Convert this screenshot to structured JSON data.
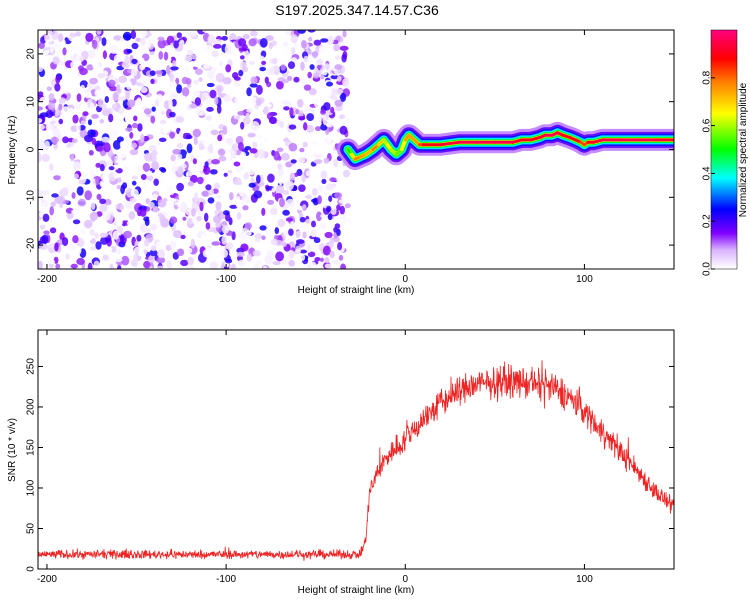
{
  "title": "S197.2025.347.14.57.C36",
  "chart_data": [
    {
      "type": "heatmap",
      "xlabel": "Height of straight line (km)",
      "ylabel": "Frequency (Hz)",
      "xlim": [
        -205,
        150
      ],
      "ylim": [
        -25,
        25
      ],
      "xticks": [
        -200,
        -100,
        0,
        100
      ],
      "yticks": [
        -20,
        -10,
        0,
        10,
        20
      ],
      "colorbar": {
        "label": "Normalized spectral amplitude",
        "range": [
          0,
          1
        ],
        "ticks": [
          "0.0",
          "0.2",
          "0.4",
          "0.6",
          "0.8"
        ],
        "colors": [
          "#ffffff",
          "#cc99ff",
          "#8000ff",
          "#0000ff",
          "#00ffff",
          "#00ff00",
          "#ffff00",
          "#ff8000",
          "#ff0000",
          "#ff0080"
        ]
      },
      "noise_region": {
        "x_from": -205,
        "x_to": -32,
        "max_amplitude": 0.25
      },
      "signal_trace": {
        "x": [
          -32,
          -30,
          -28,
          -25,
          -22,
          -18,
          -15,
          -12,
          -10,
          -8,
          -5,
          -2,
          0,
          2,
          5,
          8,
          10,
          15,
          20,
          30,
          40,
          50,
          60,
          65,
          70,
          75,
          78,
          82,
          85,
          88,
          92,
          95,
          98,
          100,
          102,
          105,
          110,
          115,
          120,
          130,
          140,
          150
        ],
        "frequency": [
          0,
          -1,
          -2,
          -1.5,
          -1,
          0,
          1,
          2,
          1,
          0,
          -1,
          0,
          2,
          3,
          2,
          1,
          1,
          1,
          1,
          1.5,
          1.5,
          1.5,
          1.5,
          2,
          2,
          2.5,
          3,
          3,
          3.5,
          3,
          2.5,
          2,
          1.5,
          1,
          1.5,
          1.5,
          2,
          2,
          2,
          2,
          2,
          2
        ],
        "amplitude": [
          0.4,
          0.6,
          0.75,
          0.8,
          0.7,
          0.75,
          0.8,
          0.6,
          0.6,
          0.7,
          0.5,
          0.6,
          0.7,
          0.8,
          0.7,
          0.8,
          0.85,
          0.9,
          0.9,
          0.95,
          0.95,
          0.95,
          0.95,
          0.9,
          0.9,
          0.9,
          0.95,
          0.95,
          0.95,
          0.9,
          0.9,
          0.9,
          0.85,
          0.8,
          0.85,
          0.9,
          0.95,
          0.95,
          0.95,
          0.95,
          0.95,
          0.9
        ]
      }
    },
    {
      "type": "line",
      "xlabel": "Height of straight line (km)",
      "ylabel": "SNR (10 * v/v)",
      "xlim": [
        -205,
        150
      ],
      "ylim": [
        0,
        295
      ],
      "xticks": [
        -200,
        -100,
        0,
        100
      ],
      "yticks": [
        0,
        50,
        100,
        150,
        200,
        250
      ],
      "color": "#ee2222",
      "envelope": {
        "x": [
          -205,
          -150,
          -100,
          -50,
          -25,
          -22,
          -20,
          -15,
          -10,
          -5,
          0,
          10,
          20,
          30,
          40,
          50,
          60,
          70,
          80,
          90,
          100,
          110,
          120,
          130,
          140,
          150
        ],
        "mean": [
          18,
          18,
          18,
          18,
          18,
          35,
          95,
          120,
          140,
          150,
          160,
          185,
          205,
          220,
          228,
          230,
          232,
          228,
          225,
          215,
          195,
          170,
          145,
          120,
          95,
          75
        ],
        "noise_amplitude": [
          8,
          8,
          8,
          8,
          8,
          12,
          18,
          20,
          22,
          24,
          24,
          26,
          28,
          28,
          28,
          28,
          28,
          28,
          30,
          28,
          26,
          24,
          22,
          20,
          18,
          15
        ]
      }
    }
  ]
}
